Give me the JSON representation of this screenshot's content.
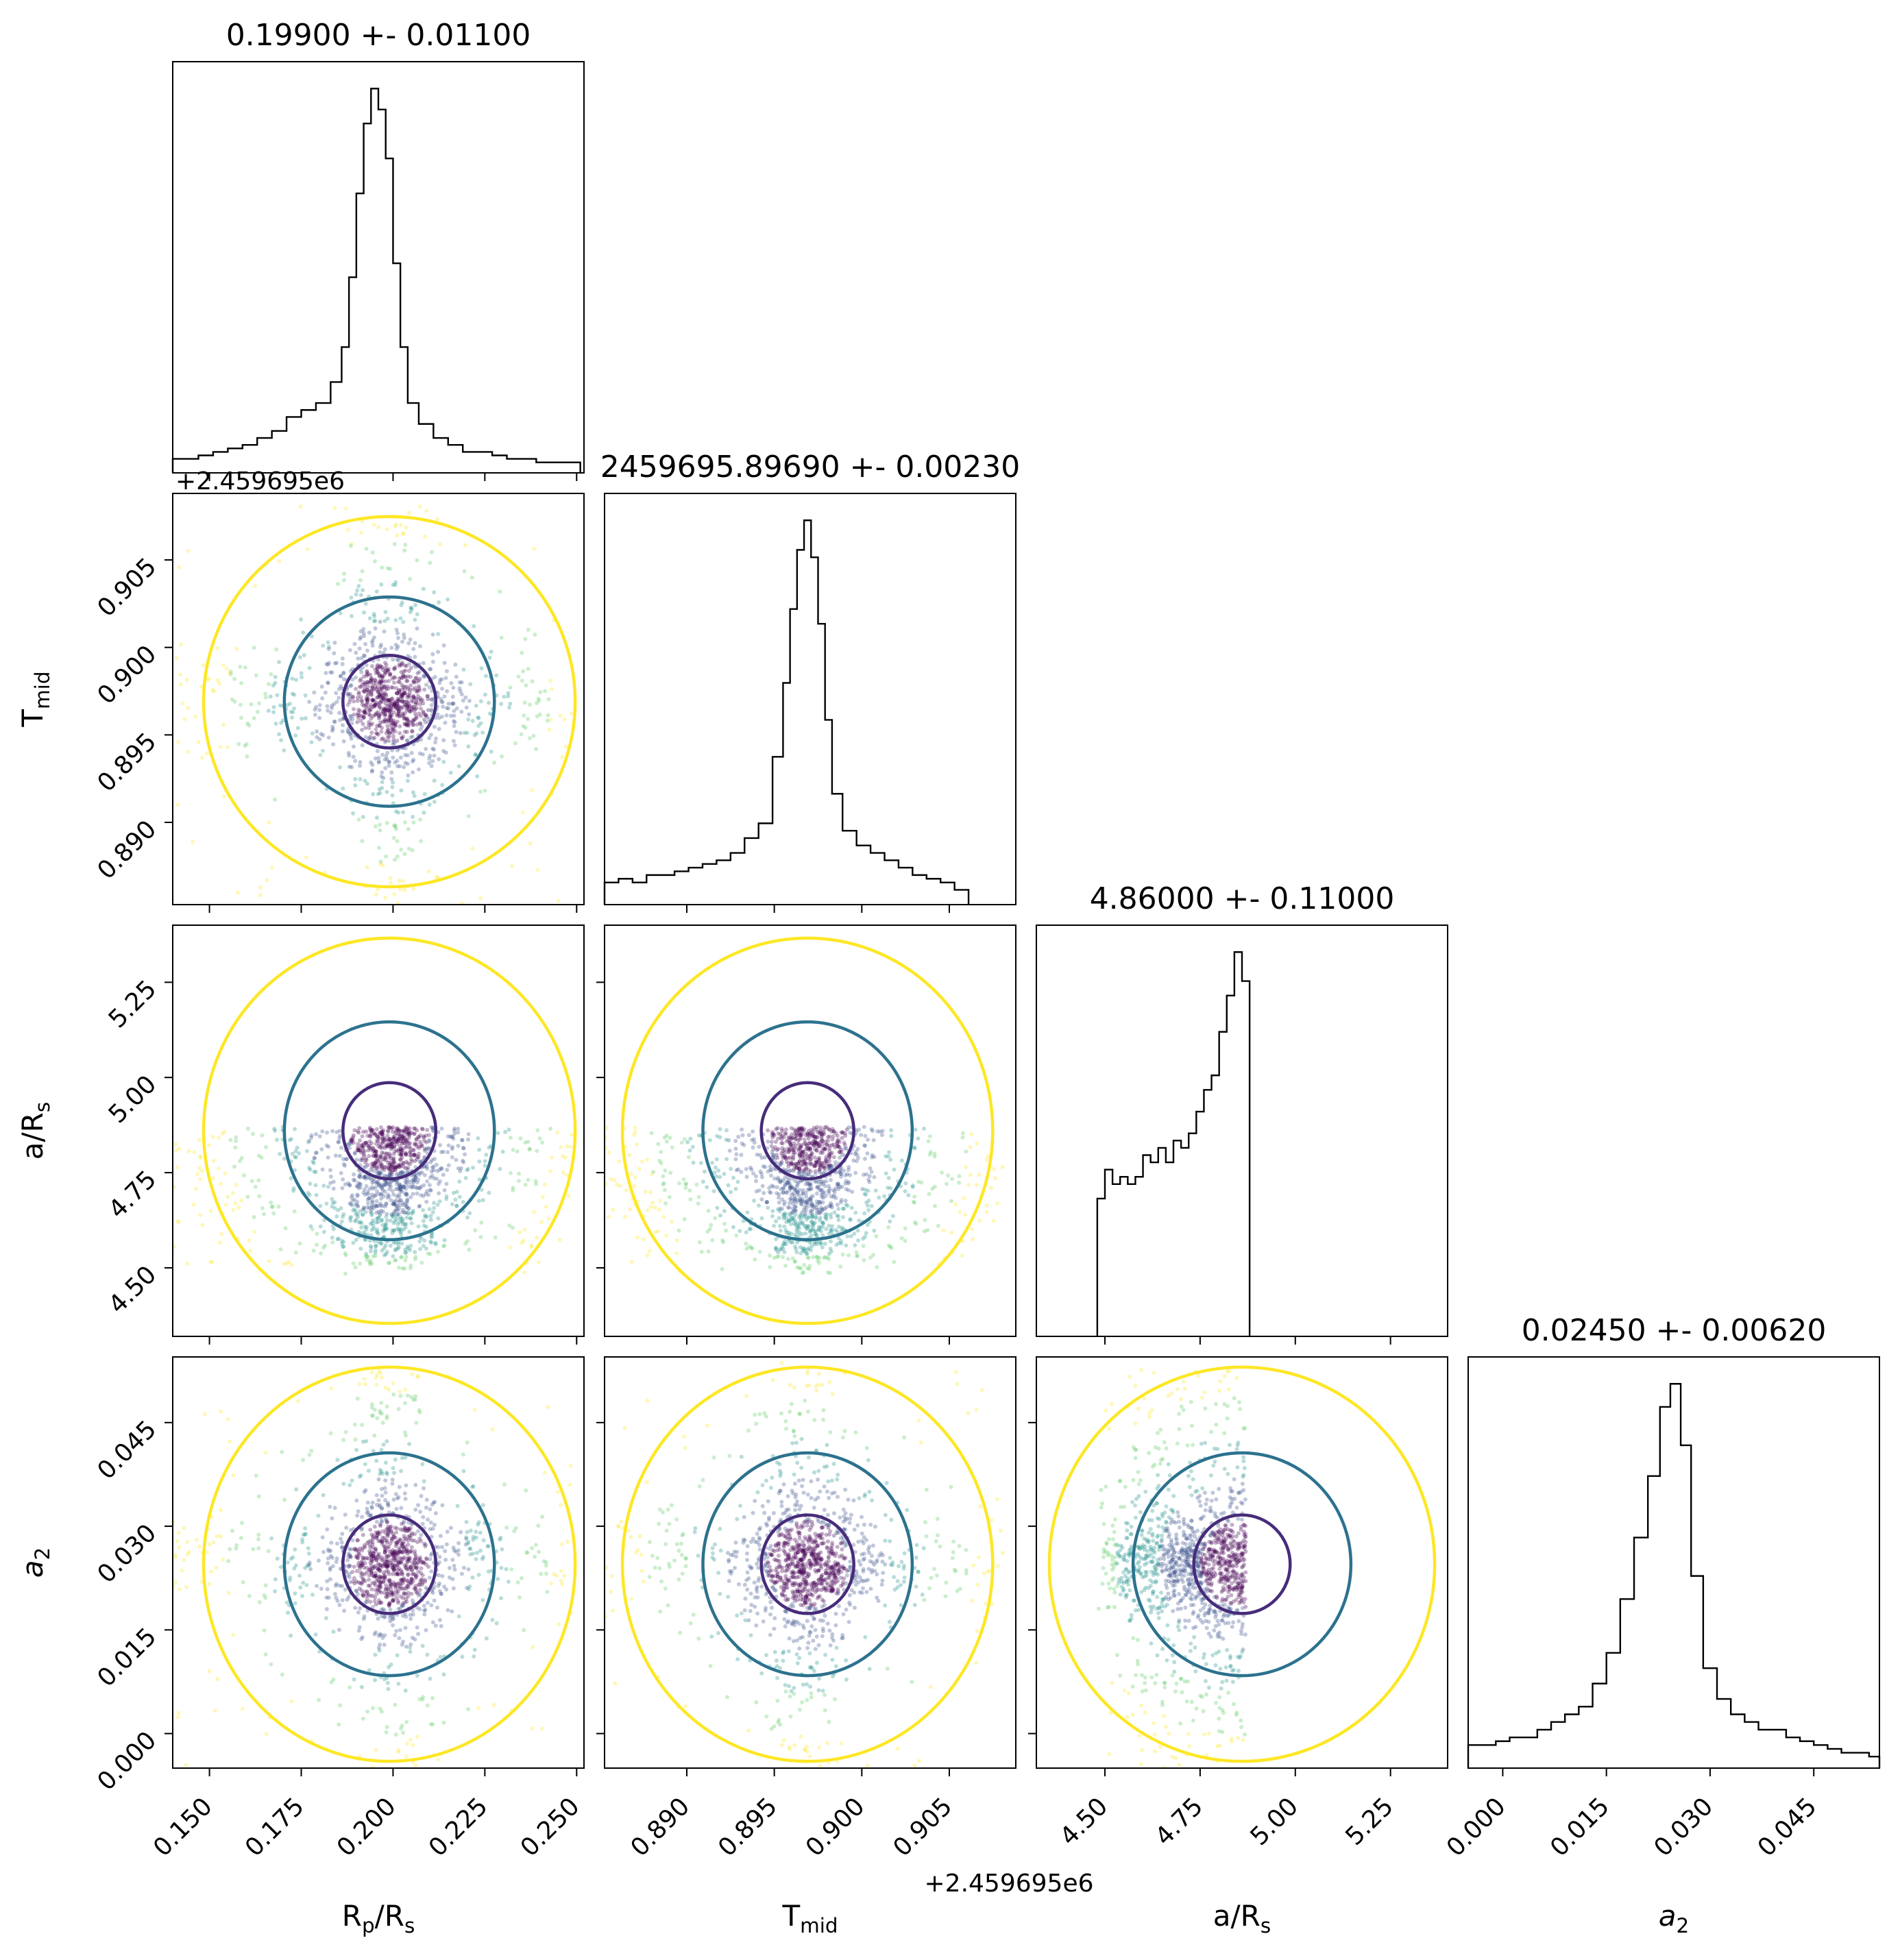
{
  "chart_data": {
    "type": "corner",
    "parameters": [
      {
        "label": "R$_p$/R$_s$",
        "label_main": "R",
        "label_sub1": "p",
        "label_mid": "/R",
        "label_sub2": "s",
        "title": "0.19900 +- 0.01100",
        "range": [
          0.14,
          0.252
        ],
        "ticks": [
          0.15,
          0.175,
          0.2,
          0.225,
          0.25
        ],
        "tick_labels": [
          "0.150",
          "0.175",
          "0.200",
          "0.225",
          "0.250"
        ],
        "mean": 0.199,
        "sigma": 0.011
      },
      {
        "label": "T$_{mid}$",
        "label_main": "T",
        "label_sub1": "mid",
        "title": "2459695.89690 +- 0.00230",
        "offset_text": "+2.459695e6",
        "range": [
          0.8853,
          0.9088
        ],
        "ticks": [
          0.89,
          0.895,
          0.9,
          0.905
        ],
        "tick_labels": [
          "0.890",
          "0.895",
          "0.900",
          "0.905"
        ],
        "mean": 0.8969,
        "sigma": 0.0023
      },
      {
        "label": "a/R$_s$",
        "label_main": "a/R",
        "label_sub1": "s",
        "title": "4.86000 +- 0.11000",
        "range": [
          4.32,
          5.4
        ],
        "ticks": [
          4.5,
          4.75,
          5.0,
          5.25
        ],
        "tick_labels": [
          "4.50",
          "4.75",
          "5.00",
          "5.25"
        ],
        "mean": 4.86,
        "sigma": 0.11,
        "sample_bounds": [
          4.48,
          4.87
        ]
      },
      {
        "label": "$a_2$",
        "label_main": "a",
        "label_sub1": "2",
        "title": "0.02450 +- 0.00620",
        "range": [
          -0.005,
          0.0545
        ],
        "ticks": [
          0.0,
          0.015,
          0.03,
          0.045
        ],
        "tick_labels": [
          "0.000",
          "0.015",
          "0.030",
          "0.045"
        ],
        "mean": 0.0245,
        "sigma": 0.0062
      }
    ],
    "histograms": [
      {
        "parameter": "R$_p$/R$_s$",
        "x": [
          0.141,
          0.145,
          0.149,
          0.153,
          0.157,
          0.161,
          0.165,
          0.169,
          0.173,
          0.177,
          0.181,
          0.185,
          0.187,
          0.189,
          0.191,
          0.193,
          0.195,
          0.197,
          0.199,
          0.201,
          0.203,
          0.205,
          0.209,
          0.213,
          0.217,
          0.221,
          0.225,
          0.229,
          0.233,
          0.237,
          0.241,
          0.245,
          0.249
        ],
        "counts": [
          2.0,
          2.0,
          2.5,
          3.0,
          3.5,
          4.0,
          5.0,
          6.0,
          8.0,
          9.0,
          10.0,
          13.0,
          18.0,
          28.0,
          40.0,
          50.0,
          55.0,
          52.0,
          45.0,
          30.0,
          18.0,
          10.0,
          7.0,
          5.0,
          4.0,
          3.0,
          3.0,
          2.5,
          2.0,
          2.0,
          1.5,
          1.5,
          1.5
        ]
      },
      {
        "parameter": "T$_{mid}$",
        "x": [
          0.8857,
          0.8865,
          0.8873,
          0.8881,
          0.8889,
          0.8897,
          0.8905,
          0.8913,
          0.8921,
          0.8929,
          0.8937,
          0.8945,
          0.8953,
          0.8957,
          0.8961,
          0.8965,
          0.8969,
          0.8973,
          0.8977,
          0.8981,
          0.8985,
          0.8993,
          0.9001,
          0.9009,
          0.9017,
          0.9025,
          0.9033,
          0.9041,
          0.9049,
          0.9057
        ],
        "counts": [
          3.0,
          3.5,
          3.0,
          4.0,
          4.0,
          4.5,
          5.0,
          5.5,
          6.0,
          7.0,
          9.0,
          11.0,
          20.0,
          30.0,
          40.0,
          48.0,
          52.0,
          47.0,
          38.0,
          25.0,
          15.0,
          10.0,
          8.0,
          7.0,
          6.0,
          5.0,
          4.0,
          3.5,
          3.0,
          2.0
        ]
      },
      {
        "parameter": "a/R$_s$",
        "x": [
          4.49,
          4.51,
          4.53,
          4.55,
          4.57,
          4.59,
          4.61,
          4.63,
          4.65,
          4.67,
          4.69,
          4.71,
          4.73,
          4.75,
          4.77,
          4.79,
          4.81,
          4.83,
          4.85,
          4.87
        ],
        "counts": [
          19.0,
          23.0,
          21.0,
          22.0,
          21.0,
          22.0,
          25.0,
          24.0,
          26.0,
          24.0,
          27.0,
          26.0,
          28.0,
          31.0,
          34.0,
          36.0,
          42.0,
          47.0,
          53.0,
          49.0
        ]
      },
      {
        "parameter": "$a_2$",
        "x": [
          -0.004,
          -0.002,
          0.0,
          0.002,
          0.004,
          0.006,
          0.008,
          0.01,
          0.012,
          0.014,
          0.016,
          0.018,
          0.02,
          0.022,
          0.0235,
          0.025,
          0.0265,
          0.028,
          0.03,
          0.032,
          0.034,
          0.036,
          0.038,
          0.04,
          0.042,
          0.044,
          0.046,
          0.048,
          0.05,
          0.052,
          0.054
        ],
        "counts": [
          3.0,
          3.0,
          3.5,
          4.0,
          4.0,
          5.0,
          6.0,
          7.0,
          8.0,
          11.0,
          15.0,
          22.0,
          30.0,
          38.0,
          47.0,
          50.0,
          42.0,
          25.0,
          13.0,
          9.0,
          7.0,
          6.0,
          5.0,
          5.0,
          4.0,
          3.5,
          3.0,
          2.5,
          2.0,
          2.0,
          1.5
        ]
      }
    ],
    "scatter_panels": [
      {
        "x": "R$_p$/R$_s$",
        "y": "T$_{mid}$"
      },
      {
        "x": "R$_p$/R$_s$",
        "y": "a/R$_s$"
      },
      {
        "x": "T$_{mid}$",
        "y": "a/R$_s$"
      },
      {
        "x": "R$_p$/R$_s$",
        "y": "$a_2$"
      },
      {
        "x": "T$_{mid}$",
        "y": "$a_2$"
      },
      {
        "x": "a/R$_s$",
        "y": "$a_2$"
      }
    ],
    "contour_levels": [
      {
        "level": "1-sigma",
        "color": "#472c7a"
      },
      {
        "level": "2-sigma",
        "color": "#2c728e"
      },
      {
        "level": "3-sigma",
        "color": "#fde725"
      }
    ],
    "point_colormap": "viridis",
    "grid": false,
    "legend": "none"
  }
}
